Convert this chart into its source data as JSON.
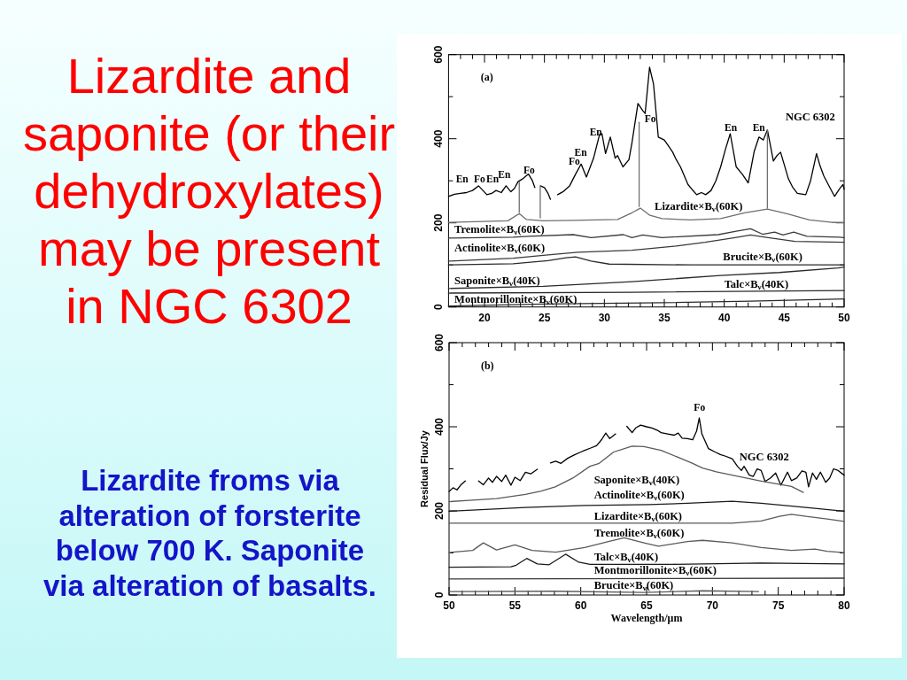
{
  "chart_data": [
    {
      "type": "other",
      "title": "Lizardite and saponite (or their dehydroxylates) may be present in NGC 6302",
      "annotations": [
        "Lizardite froms via alteration of forsterite below 700 K. Saponite via alteration of basalts."
      ]
    },
    {
      "type": "line",
      "xlim": [
        17,
        50
      ],
      "ylim": [
        0,
        600
      ],
      "xticks": [
        {
          "value": 18,
          "label": null
        },
        {
          "value": 19,
          "label": null
        },
        20,
        {
          "value": 21,
          "label": null
        },
        {
          "value": 22,
          "label": null
        },
        {
          "value": 23,
          "label": null
        },
        {
          "value": 24,
          "label": null
        },
        25,
        {
          "value": 26,
          "label": null
        },
        {
          "value": 27,
          "label": null
        },
        {
          "value": 28,
          "label": null
        },
        {
          "value": 29,
          "label": null
        },
        30,
        {
          "value": 31,
          "label": null
        },
        {
          "value": 32,
          "label": null
        },
        {
          "value": 33,
          "label": null
        },
        {
          "value": 34,
          "label": null
        },
        35,
        {
          "value": 36,
          "label": null
        },
        {
          "value": 37,
          "label": null
        },
        {
          "value": 38,
          "label": null
        },
        {
          "value": 39,
          "label": null
        },
        40,
        {
          "value": 41,
          "label": null
        },
        {
          "value": 42,
          "label": null
        },
        {
          "value": 43,
          "label": null
        },
        {
          "value": 44,
          "label": null
        },
        45,
        {
          "value": 46,
          "label": null
        },
        {
          "value": 47,
          "label": null
        },
        {
          "value": 48,
          "label": null
        },
        {
          "value": 49,
          "label": null
        },
        50
      ],
      "yticks": [
        0,
        {
          "value": 100,
          "label": null
        },
        200,
        {
          "value": 300,
          "label": null
        },
        400,
        {
          "value": 500,
          "label": null
        },
        600
      ],
      "series": [
        {
          "name": "NGC 6302",
          "color": "#000000",
          "x": [
            17,
            17.5,
            18,
            18.5,
            19,
            19.5,
            20.2,
            20.6,
            20.96,
            21.4,
            21.8,
            22.2,
            22.5,
            22.8,
            23.2,
            23.67,
            24,
            24.2,
            24.4,
            24.66,
            25,
            25.3,
            25.5,
            25.8,
            26.1,
            26.6,
            27.1,
            27.6,
            28.06,
            28.5,
            29.1,
            29.6,
            29.8,
            30.1,
            30.5,
            30.9,
            31.1,
            31.55,
            32.05,
            32.3,
            32.8,
            33.2,
            33.4,
            33.77,
            34.1,
            34.5,
            35,
            35.3,
            35.7,
            36,
            36.35,
            36.98,
            37.3,
            37.7,
            38.1,
            38.45,
            38.9,
            39.3,
            39.7,
            40.1,
            40.5,
            41,
            41.5,
            42,
            42.5,
            42.9,
            43.26,
            43.6,
            44.1,
            44.4,
            44.7,
            45.35,
            45.7,
            46.1,
            46.8,
            47.2,
            47.7,
            48,
            48.3,
            48.7,
            49.2,
            49.6,
            49.9,
            50
          ],
          "values": [
            263,
            268,
            270,
            272,
            277,
            288,
            267,
            270,
            277,
            272,
            288,
            274,
            282,
            298,
            305,
            316,
            300,
            284,
            null,
            288,
            284,
            270,
            256,
            null,
            267,
            275,
            288,
            316,
            340,
            309,
            354,
            410,
            412,
            365,
            404,
            354,
            360,
            333,
            350,
            390,
            484,
            467,
            460,
            570,
            530,
            404,
            397,
            385,
            368,
            350,
            333,
            291,
            280,
            267,
            272,
            267,
            277,
            300,
            333,
            375,
            412,
            333,
            316,
            295,
            370,
            404,
            397,
            421,
            347,
            360,
            368,
            305,
            285,
            270,
            267,
            300,
            365,
            335,
            312,
            290,
            263,
            280,
            291,
            280
          ]
        },
        {
          "name": "Lizardite×B$_{ν}$(60K)",
          "color": "#6e6e6e",
          "x": [
            17,
            21.95,
            22.9,
            23.5,
            24.9,
            27.4,
            31.1,
            32.3,
            33,
            33.8,
            34.8,
            37.2,
            39.7,
            41.7,
            43.6,
            45.3,
            47.1,
            49,
            50
          ],
          "values": [
            201,
            205,
            222,
            208,
            205,
            206,
            208,
            224,
            235,
            218,
            210,
            207,
            210,
            224,
            233,
            221,
            207,
            201,
            201
          ]
        },
        {
          "name": "Tremolite×B$_{ν}$(60K)",
          "color": "#3a3a3a",
          "x": [
            17,
            22.4,
            23.7,
            27.4,
            28.9,
            31.6,
            32.3,
            33.2,
            34.8,
            39.5,
            41,
            42.2,
            43.2,
            44.2,
            44.9,
            45.8,
            46.9,
            49.6,
            50
          ],
          "values": [
            164,
            166,
            168,
            172,
            165,
            172,
            165,
            171,
            165,
            172,
            180,
            186,
            173,
            178,
            171,
            178,
            168,
            166,
            165
          ]
        },
        {
          "name": "Actinolite×B$_{ν}$(60K)",
          "color": "#3a3a3a",
          "x": [
            17,
            22.4,
            25.3,
            27.8,
            32.3,
            36,
            38.4,
            40.9,
            42.2,
            43.4,
            45.9,
            50
          ],
          "values": [
            109,
            116,
            124,
            130,
            135,
            145,
            154,
            165,
            171,
            166,
            156,
            154
          ]
        },
        {
          "name": "Brucite×B$_{ν}$(60K)",
          "color": "#2a2a2a",
          "x": [
            17,
            22.4,
            25.3,
            26.8,
            27.6,
            28.9,
            30.4,
            37.2,
            50
          ],
          "values": [
            100,
            103,
            110,
            117,
            119,
            109,
            102,
            100,
            100
          ]
        },
        {
          "name": "Saponite×B$_{ν}$(40K)",
          "color": "#2a2a2a",
          "x": [
            17,
            24.9,
            32.3,
            39.7,
            44.6,
            49.5,
            50
          ],
          "values": [
            44,
            49,
            60,
            75,
            82,
            93,
            95
          ]
        },
        {
          "name": "Talc×B$_{ν}$(40K)",
          "color": "#2a2a2a",
          "x": [
            17,
            32.3,
            50
          ],
          "values": [
            33,
            35,
            39
          ]
        },
        {
          "name": "Montmorillonite×B$_{ν}$(60K)",
          "color": "#2a2a2a",
          "x": [
            17,
            24.9,
            34.8,
            42.2,
            50
          ],
          "values": [
            2,
            7,
            10,
            14,
            19
          ]
        },
        {
          "color": "#6e6e6e",
          "x": [
            22.9,
            22.9
          ],
          "values": [
            298,
            225
          ]
        },
        {
          "color": "#6e6e6e",
          "x": [
            24.65,
            24.65
          ],
          "values": [
            288,
            212
          ]
        },
        {
          "color": "#6e6e6e",
          "x": [
            32.9,
            32.9
          ],
          "values": [
            439,
            239
          ]
        },
        {
          "color": "#6e6e6e",
          "x": [
            43.6,
            43.6
          ],
          "values": [
            421,
            235
          ]
        }
      ],
      "annotations": [
        "(a)",
        "En",
        "Fo",
        "En",
        "En",
        "Fo",
        "Fo",
        "En",
        "En",
        "Fo",
        "En",
        "En"
      ]
    },
    {
      "type": "line",
      "xlabel": "Wavelength/μm",
      "ylabel": "Residual Flux/Jy",
      "xlim": [
        50,
        80
      ],
      "ylim": [
        0,
        600
      ],
      "xticks": [
        50,
        {
          "value": 51,
          "label": null
        },
        {
          "value": 52,
          "label": null
        },
        {
          "value": 53,
          "label": null
        },
        {
          "value": 54,
          "label": null
        },
        55,
        {
          "value": 56,
          "label": null
        },
        {
          "value": 57,
          "label": null
        },
        {
          "value": 58,
          "label": null
        },
        {
          "value": 59,
          "label": null
        },
        60,
        {
          "value": 61,
          "label": null
        },
        {
          "value": 62,
          "label": null
        },
        {
          "value": 63,
          "label": null
        },
        {
          "value": 64,
          "label": null
        },
        65,
        {
          "value": 66,
          "label": null
        },
        {
          "value": 67,
          "label": null
        },
        {
          "value": 68,
          "label": null
        },
        {
          "value": 69,
          "label": null
        },
        70,
        {
          "value": 71,
          "label": null
        },
        {
          "value": 72,
          "label": null
        },
        {
          "value": 73,
          "label": null
        },
        {
          "value": 74,
          "label": null
        },
        75,
        {
          "value": 76,
          "label": null
        },
        {
          "value": 77,
          "label": null
        },
        {
          "value": 78,
          "label": null
        },
        {
          "value": 79,
          "label": null
        },
        80
      ],
      "yticks": [
        0,
        {
          "value": 100,
          "label": null
        },
        200,
        {
          "value": 300,
          "label": null
        },
        400,
        {
          "value": 500,
          "label": null
        },
        600
      ],
      "series": [
        {
          "name": "NGC 6302",
          "color": "#000000",
          "x": [
            50,
            50.3,
            50.6,
            50.9,
            51.23,
            51.7,
            52.24,
            52.6,
            53,
            53.3,
            53.6,
            54,
            54.3,
            54.7,
            55,
            55.4,
            55.8,
            56.2,
            56.7,
            57.2,
            57.7,
            58.1,
            58.5,
            59,
            59.5,
            60,
            60.3,
            60.8,
            61.2,
            61.6,
            61.9,
            62.2,
            62.65,
            63,
            63.5,
            63.9,
            64.2,
            64.55,
            65,
            65.4,
            65.8,
            66.1,
            66.6,
            67.1,
            67.4,
            67.7,
            68.1,
            68.5,
            68.8,
            69,
            69.2,
            69.7,
            70.2,
            70.6,
            71,
            71.5,
            71.9,
            72.2,
            72.4,
            72.8,
            73.1,
            73.4,
            73.7,
            74,
            74.4,
            74.8,
            75.2,
            75.5,
            75.7,
            76,
            76.4,
            76.8,
            77.1,
            77.3,
            77.6,
            77.9,
            78.2,
            78.6,
            78.9,
            79.2,
            79.55,
            80
          ],
          "values": [
            246,
            255,
            250,
            262,
            271,
            null,
            271,
            262,
            278,
            268,
            282,
            270,
            285,
            261,
            280,
            272,
            292,
            288,
            299,
            null,
            314,
            318,
            313,
            325,
            333,
            340,
            344,
            350,
            355,
            370,
            385,
            372,
            383,
            null,
            401,
            386,
            398,
            404,
            400,
            397,
            392,
            386,
            383,
            380,
            385,
            373,
            372,
            369,
            390,
            421,
            383,
            348,
            340,
            334,
            330,
            324,
            306,
            296,
            306,
            285,
            282,
            300,
            296,
            270,
            278,
            290,
            261,
            280,
            292,
            272,
            278,
            295,
            292,
            257,
            290,
            275,
            292,
            268,
            278,
            300,
            296,
            285
          ]
        },
        {
          "name": "Saponite×B$_{ν}$(40K)",
          "color": "#5a5a5a",
          "x": [
            50,
            51.5,
            53.6,
            55.8,
            57,
            58.06,
            59.4,
            60.7,
            61.4,
            62.5,
            63.9,
            64.8,
            66.1,
            67.5,
            68.5,
            69.25,
            70.3,
            71.5,
            73.7,
            76,
            76.9
          ],
          "values": [
            222,
            225,
            229,
            239,
            247,
            257,
            278,
            306,
            313,
            340,
            354,
            353,
            344,
            326,
            313,
            302,
            293,
            285,
            271,
            258,
            244
          ]
        },
        {
          "name": "Actinolite×B$_{ν}$(60K)",
          "color": "#1a1a1a",
          "x": [
            50,
            55.8,
            60.3,
            65.2,
            68.1,
            71.5,
            73.7,
            77.1,
            80
          ],
          "values": [
            199,
            208,
            213,
            215,
            218,
            223,
            218,
            208,
            199
          ]
        },
        {
          "name": "Lizardite×B$_{ν}$(60K)",
          "color": "#5a5a5a",
          "x": [
            50,
            71.5,
            73.7,
            75.1,
            76,
            77.1,
            78.7,
            80
          ],
          "values": [
            171,
            171,
            176,
            187,
            192,
            187,
            181,
            175
          ]
        },
        {
          "name": "Tremolite×B$_{ν}$(60K)",
          "color": "#5a5a5a",
          "x": [
            50,
            51.8,
            52.6,
            53.6,
            55,
            56.3,
            58.1,
            60.3,
            62.1,
            63.3,
            64.8,
            65.9,
            68.1,
            69.25,
            71.5,
            73.7,
            76,
            77.8,
            78.7,
            80
          ],
          "values": [
            101,
            106,
            124,
            107,
            119,
            106,
            102,
            113,
            127,
            136,
            124,
            116,
            127,
            130,
            124,
            113,
            106,
            109,
            104,
            101
          ]
        },
        {
          "name": "Talc×B$_{ν}$(40K)",
          "color": "#1a1a1a",
          "x": [
            50,
            54.7,
            55.1,
            55.9,
            56.7,
            57.6,
            58.85,
            59.85,
            60.7,
            67,
            73.7,
            80
          ],
          "values": [
            66,
            67,
            71,
            87,
            74,
            72,
            97,
            78,
            73,
            73,
            76,
            74
          ]
        },
        {
          "name": "Montmorillonite×B$_{ν}$(60K)",
          "color": "#3a3a3a",
          "x": [
            50,
            80
          ],
          "values": [
            38,
            40
          ]
        },
        {
          "name": "Brucite×B$_{ν}$(60K)",
          "color": "#5a5a5a",
          "x": [
            50,
            58.06,
            64.8,
            69.25,
            73.5
          ],
          "values": [
            8,
            9,
            6,
            10,
            8
          ]
        }
      ],
      "annotations": [
        "(b)",
        "Fo"
      ]
    }
  ]
}
